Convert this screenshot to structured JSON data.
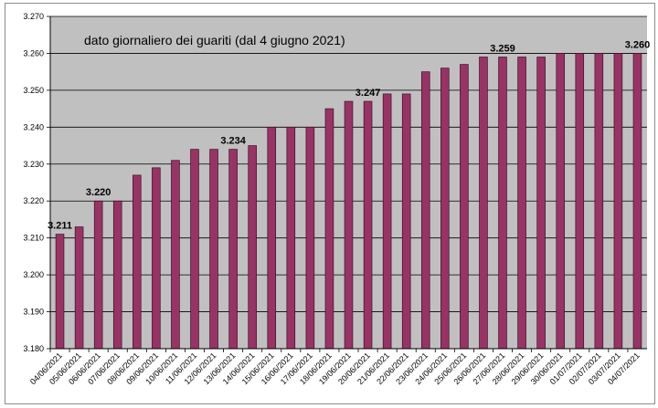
{
  "chart_data": {
    "type": "bar",
    "title": "dato giornaliero dei guariti (dal 4 giugno 2021)",
    "xlabel": "",
    "ylabel": "",
    "ylim": [
      3180,
      3270
    ],
    "ytick_step": 10,
    "ytick_labels": [
      "3.180",
      "3.190",
      "3.200",
      "3.210",
      "3.220",
      "3.230",
      "3.240",
      "3.250",
      "3.260",
      "3.270"
    ],
    "grid": true,
    "legend": "none",
    "plot_background": "#c0c0c0",
    "bar_color": "#993366",
    "categories": [
      "04/06/2021",
      "05/06/2021",
      "06/06/2021",
      "07/06/2021",
      "08/06/2021",
      "09/06/2021",
      "10/06/2021",
      "11/06/2021",
      "12/06/2021",
      "13/06/2021",
      "14/06/2021",
      "15/06/2021",
      "16/06/2021",
      "17/06/2021",
      "18/06/2021",
      "19/06/2021",
      "20/06/2021",
      "21/06/2021",
      "22/06/2021",
      "23/06/2021",
      "24/06/2021",
      "25/06/2021",
      "26/06/2021",
      "27/06/2021",
      "28/06/2021",
      "29/06/2021",
      "30/06/2021",
      "01/07/2021",
      "02/07/2021",
      "03/07/2021",
      "04/07/2021"
    ],
    "values": [
      3211,
      3213,
      3220,
      3220,
      3227,
      3229,
      3231,
      3234,
      3234,
      3234,
      3235,
      3240,
      3240,
      3240,
      3245,
      3247,
      3247,
      3249,
      3249,
      3255,
      3256,
      3257,
      3259,
      3259,
      3259,
      3259,
      3260,
      3260,
      3260,
      3260,
      3260
    ],
    "data_labels": [
      {
        "index": 0,
        "text": "3.211"
      },
      {
        "index": 2,
        "text": "3.220"
      },
      {
        "index": 9,
        "text": "3.234"
      },
      {
        "index": 16,
        "text": "3.247"
      },
      {
        "index": 23,
        "text": "3.259"
      },
      {
        "index": 30,
        "text": "3.260"
      }
    ]
  }
}
